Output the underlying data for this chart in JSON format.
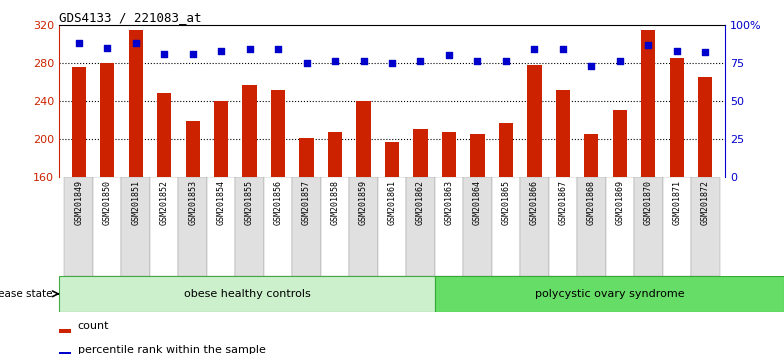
{
  "title": "GDS4133 / 221083_at",
  "samples": [
    "GSM201849",
    "GSM201850",
    "GSM201851",
    "GSM201852",
    "GSM201853",
    "GSM201854",
    "GSM201855",
    "GSM201856",
    "GSM201857",
    "GSM201858",
    "GSM201859",
    "GSM201861",
    "GSM201862",
    "GSM201863",
    "GSM201864",
    "GSM201865",
    "GSM201866",
    "GSM201867",
    "GSM201868",
    "GSM201869",
    "GSM201870",
    "GSM201871",
    "GSM201872"
  ],
  "counts": [
    276,
    280,
    315,
    248,
    219,
    240,
    257,
    251,
    201,
    207,
    240,
    197,
    210,
    207,
    205,
    217,
    278,
    251,
    205,
    230,
    315,
    285,
    265
  ],
  "percentiles": [
    88,
    85,
    88,
    81,
    81,
    83,
    84,
    84,
    75,
    76,
    76,
    75,
    76,
    80,
    76,
    76,
    84,
    84,
    73,
    76,
    87,
    83,
    82
  ],
  "group1_label": "obese healthy controls",
  "group2_label": "polycystic ovary syndrome",
  "group1_count": 13,
  "group2_count": 10,
  "bar_color": "#cc2200",
  "dot_color": "#0000cc",
  "ylim_left": [
    160,
    320
  ],
  "ylim_right": [
    0,
    100
  ],
  "yticks_left": [
    160,
    200,
    240,
    280,
    320
  ],
  "yticks_right": [
    0,
    25,
    50,
    75,
    100
  ],
  "ytick_labels_right": [
    "0",
    "25",
    "50",
    "75",
    "100%"
  ],
  "group1_color": "#ccf0cc",
  "group2_color": "#66dd66",
  "legend_count_label": "count",
  "legend_percentile_label": "percentile rank within the sample",
  "xticklabel_colors": [
    "#e0e0e0",
    "#ffffff",
    "#e0e0e0",
    "#ffffff",
    "#e0e0e0",
    "#ffffff",
    "#e0e0e0",
    "#ffffff",
    "#e0e0e0",
    "#ffffff",
    "#e0e0e0",
    "#ffffff",
    "#e0e0e0",
    "#ffffff",
    "#e0e0e0",
    "#ffffff",
    "#e0e0e0",
    "#ffffff",
    "#e0e0e0",
    "#ffffff",
    "#e0e0e0",
    "#ffffff",
    "#e0e0e0"
  ]
}
